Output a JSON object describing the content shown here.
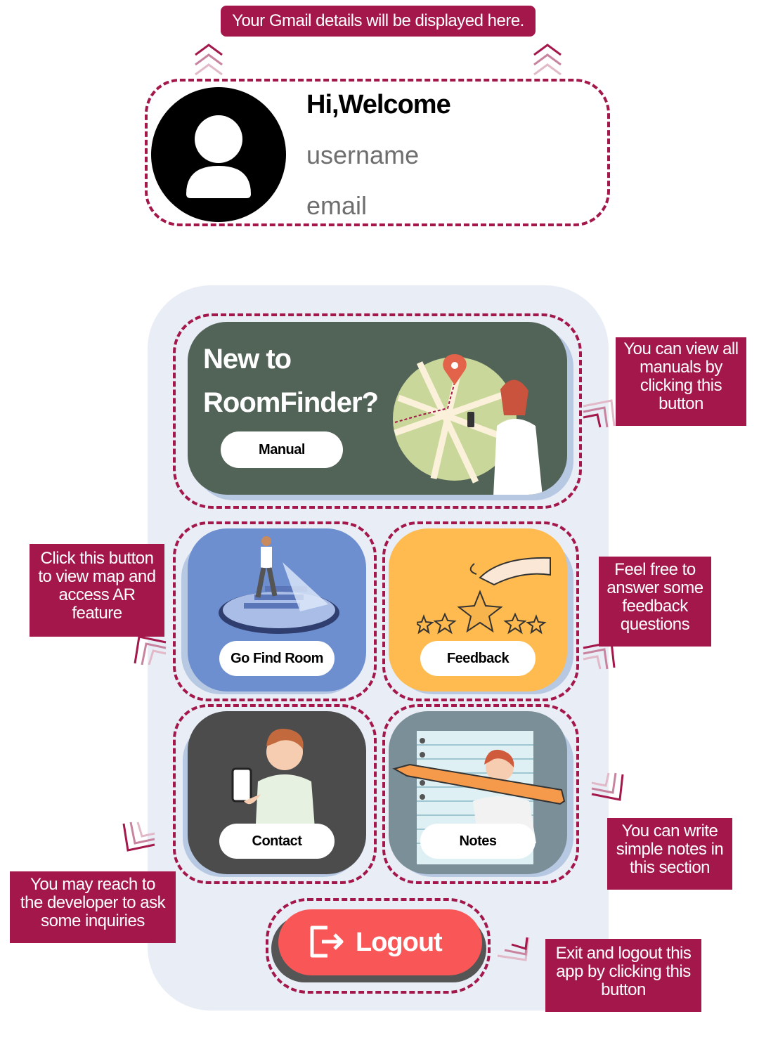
{
  "callouts": {
    "gmail_details": "Your Gmail details will be displayed here.",
    "manual_hint": [
      "You can view all",
      "manuals by",
      "clicking this",
      "button"
    ],
    "map_hint": [
      "Click this button",
      "to view map and",
      "access AR",
      "feature"
    ],
    "feedback_hint": [
      "Feel free to",
      "answer some",
      "feedback",
      "questions"
    ],
    "notes_hint": [
      "You can write",
      "simple notes in",
      "this section"
    ],
    "contact_hint": [
      "You may reach to",
      "the developer to ask",
      "some inquiries"
    ],
    "logout_hint": [
      "Exit and logout this",
      "app by clicking this",
      "button"
    ]
  },
  "profile": {
    "greeting": "Hi,Welcome",
    "username": "username",
    "email": "email",
    "avatar_icon": "user-icon"
  },
  "hero": {
    "title_line1": "New to",
    "title_line2": "RoomFinder?",
    "button_label": "Manual",
    "illustration": "map-pin-illustration"
  },
  "tiles": {
    "go_find_room": "Go Find Room",
    "feedback": "Feedback",
    "contact": "Contact",
    "notes": "Notes"
  },
  "logout": {
    "label": "Logout",
    "icon": "logout-icon"
  },
  "colors": {
    "accent": "#a3174a",
    "panel": "#e9edf6",
    "hero": "#526357",
    "go_find_room": "#6d8fd0",
    "feedback": "#ffbb50",
    "contact": "#4c4c4c",
    "notes": "#7b8f98",
    "logout": "#f95757"
  }
}
